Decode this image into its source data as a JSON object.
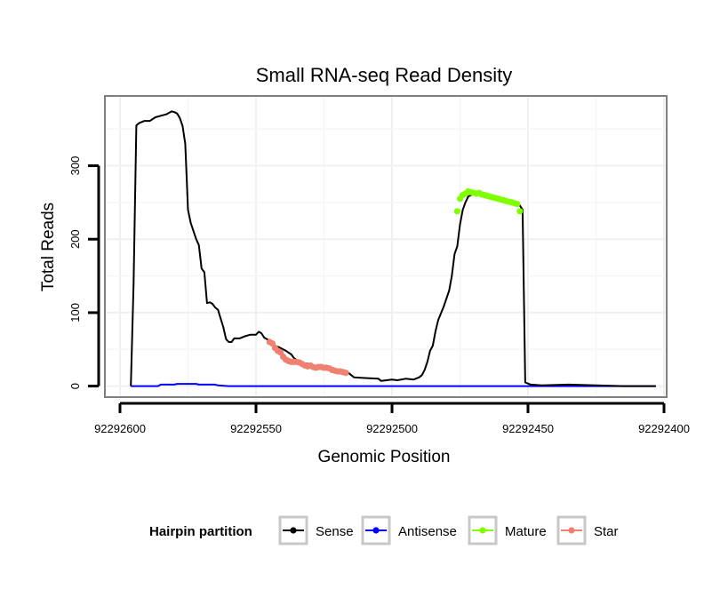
{
  "chart_data": {
    "type": "line",
    "title": "Small RNA-seq Read Density",
    "xlabel": "Genomic Position",
    "ylabel": "Total Reads",
    "xlim": [
      92292400,
      92292600
    ],
    "x_reversed": true,
    "ylim": [
      -15,
      395
    ],
    "xticks": [
      92292600,
      92292550,
      92292500,
      92292450,
      92292400
    ],
    "xtick_labels": [
      "92292600",
      "92292550",
      "92292500",
      "92292450",
      "92292400"
    ],
    "yticks": [
      0,
      100,
      200,
      300
    ],
    "ytick_labels": [
      "0",
      "100",
      "200",
      "300"
    ],
    "grid": true,
    "legend": {
      "title": "Hairpin partition",
      "position": "bottom",
      "entries": [
        "Sense",
        "Antisense",
        "Mature",
        "Star"
      ]
    },
    "series": [
      {
        "name": "Sense",
        "color": "#000000",
        "points": [
          [
            92292596,
            0
          ],
          [
            92292595,
            140
          ],
          [
            92292594,
            355
          ],
          [
            92292593,
            358
          ],
          [
            92292591,
            361
          ],
          [
            92292589,
            361
          ],
          [
            92292587,
            366
          ],
          [
            92292585,
            368
          ],
          [
            92292583,
            370
          ],
          [
            92292581,
            374
          ],
          [
            92292580,
            373
          ],
          [
            92292579,
            371
          ],
          [
            92292578,
            365
          ],
          [
            92292577,
            354
          ],
          [
            92292576,
            330
          ],
          [
            92292575,
            240
          ],
          [
            92292574,
            222
          ],
          [
            92292572,
            200
          ],
          [
            92292571,
            192
          ],
          [
            92292570,
            160
          ],
          [
            92292569,
            155
          ],
          [
            92292568,
            113
          ],
          [
            92292567,
            114
          ],
          [
            92292566,
            112
          ],
          [
            92292565,
            107
          ],
          [
            92292564,
            104
          ],
          [
            92292563,
            92
          ],
          [
            92292562,
            80
          ],
          [
            92292561,
            64
          ],
          [
            92292560,
            60
          ],
          [
            92292559,
            60
          ],
          [
            92292558,
            65
          ],
          [
            92292556,
            65
          ],
          [
            92292554,
            68
          ],
          [
            92292552,
            70
          ],
          [
            92292550,
            70
          ],
          [
            92292549,
            74
          ],
          [
            92292548,
            72
          ],
          [
            92292547,
            66
          ],
          [
            92292546,
            64
          ],
          [
            92292545,
            62
          ],
          [
            92292544,
            60
          ],
          [
            92292543,
            55
          ],
          [
            92292541,
            52
          ],
          [
            92292539,
            48
          ],
          [
            92292537,
            43
          ],
          [
            92292536,
            38
          ],
          [
            92292534,
            33
          ],
          [
            92292532,
            31
          ],
          [
            92292530,
            30
          ],
          [
            92292528,
            27
          ],
          [
            92292526,
            25
          ],
          [
            92292524,
            25
          ],
          [
            92292522,
            23
          ],
          [
            92292520,
            21
          ],
          [
            92292518,
            20
          ],
          [
            92292516,
            18
          ],
          [
            92292514,
            12
          ],
          [
            92292510,
            11
          ],
          [
            92292505,
            10
          ],
          [
            92292504,
            7
          ],
          [
            92292502,
            8
          ],
          [
            92292500,
            9
          ],
          [
            92292498,
            8
          ],
          [
            92292495,
            10
          ],
          [
            92292492,
            9
          ],
          [
            92292490,
            12
          ],
          [
            92292489,
            15
          ],
          [
            92292488,
            22
          ],
          [
            92292487,
            33
          ],
          [
            92292486,
            48
          ],
          [
            92292485,
            55
          ],
          [
            92292484,
            75
          ],
          [
            92292483,
            90
          ],
          [
            92292481,
            108
          ],
          [
            92292479,
            130
          ],
          [
            92292478,
            150
          ],
          [
            92292477,
            180
          ],
          [
            92292476,
            190
          ],
          [
            92292475,
            220
          ],
          [
            92292474,
            240
          ],
          [
            92292473,
            250
          ],
          [
            92292472,
            258
          ],
          [
            92292471,
            260
          ],
          [
            92292470,
            262
          ],
          [
            92292469,
            262
          ],
          [
            92292468,
            261
          ],
          [
            92292467,
            262
          ],
          [
            92292466,
            260
          ],
          [
            92292465,
            259
          ],
          [
            92292464,
            258
          ],
          [
            92292463,
            256
          ],
          [
            92292462,
            255
          ],
          [
            92292461,
            254
          ],
          [
            92292460,
            253
          ],
          [
            92292459,
            252
          ],
          [
            92292458,
            251
          ],
          [
            92292457,
            250
          ],
          [
            92292456,
            250
          ],
          [
            92292455,
            249
          ],
          [
            92292454,
            248
          ],
          [
            92292453,
            246
          ],
          [
            92292452,
            240
          ],
          [
            92292451,
            5
          ],
          [
            92292449,
            2
          ],
          [
            92292445,
            1
          ],
          [
            92292435,
            2
          ],
          [
            92292425,
            1
          ],
          [
            92292415,
            0
          ],
          [
            92292403,
            0
          ]
        ]
      },
      {
        "name": "Antisense",
        "color": "#0000ff",
        "points": [
          [
            92292596,
            0
          ],
          [
            92292586,
            0
          ],
          [
            92292585,
            2
          ],
          [
            92292580,
            2
          ],
          [
            92292579,
            3
          ],
          [
            92292572,
            3
          ],
          [
            92292571,
            2
          ],
          [
            92292565,
            2
          ],
          [
            92292564,
            1
          ],
          [
            92292560,
            0
          ],
          [
            92292403,
            0
          ]
        ]
      },
      {
        "name": "Mature",
        "color": "#7fff00",
        "points": [
          [
            92292476,
            238
          ],
          [
            92292475,
            255
          ],
          [
            92292474,
            260
          ],
          [
            92292473,
            262
          ],
          [
            92292472,
            265
          ],
          [
            92292471,
            264
          ],
          [
            92292470,
            263
          ],
          [
            92292469,
            262
          ],
          [
            92292468,
            263
          ],
          [
            92292467,
            261
          ],
          [
            92292466,
            260
          ],
          [
            92292465,
            259
          ],
          [
            92292464,
            258
          ],
          [
            92292463,
            257
          ],
          [
            92292462,
            256
          ],
          [
            92292461,
            255
          ],
          [
            92292460,
            254
          ],
          [
            92292459,
            253
          ],
          [
            92292458,
            252
          ],
          [
            92292457,
            251
          ],
          [
            92292456,
            250
          ],
          [
            92292455,
            249
          ],
          [
            92292454,
            248
          ],
          [
            92292453,
            238
          ]
        ]
      },
      {
        "name": "Star",
        "color": "#f08070",
        "points": [
          [
            92292545,
            60
          ],
          [
            92292544,
            58
          ],
          [
            92292543,
            52
          ],
          [
            92292542,
            48
          ],
          [
            92292541,
            46
          ],
          [
            92292540,
            40
          ],
          [
            92292539,
            36
          ],
          [
            92292538,
            34
          ],
          [
            92292537,
            33
          ],
          [
            92292536,
            33
          ],
          [
            92292535,
            33
          ],
          [
            92292534,
            32
          ],
          [
            92292533,
            30
          ],
          [
            92292532,
            28
          ],
          [
            92292531,
            27
          ],
          [
            92292530,
            28
          ],
          [
            92292529,
            26
          ],
          [
            92292528,
            25
          ],
          [
            92292527,
            26
          ],
          [
            92292526,
            26
          ],
          [
            92292525,
            25
          ],
          [
            92292524,
            25
          ],
          [
            92292523,
            24
          ],
          [
            92292522,
            22
          ],
          [
            92292521,
            21
          ],
          [
            92292520,
            20
          ],
          [
            92292519,
            20
          ],
          [
            92292518,
            19
          ],
          [
            92292517,
            18
          ]
        ]
      }
    ]
  }
}
